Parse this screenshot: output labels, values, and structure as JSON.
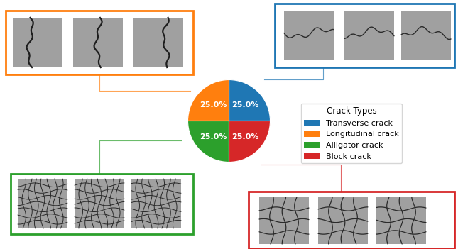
{
  "chart_data": {
    "type": "pie",
    "categories": [
      "Transverse crack",
      "Longitudinal crack",
      "Alligator crack",
      "Block crack"
    ],
    "values": [
      25,
      25,
      25,
      25
    ],
    "value_labels": [
      "25.0%",
      "25.0%",
      "25.0%",
      "25.0%"
    ],
    "colors": [
      "#1f77b4",
      "#ff7f0e",
      "#2ca02c",
      "#d62728"
    ],
    "data_labels": true,
    "legend": "center left",
    "legend_title": "Crack Types"
  }
}
